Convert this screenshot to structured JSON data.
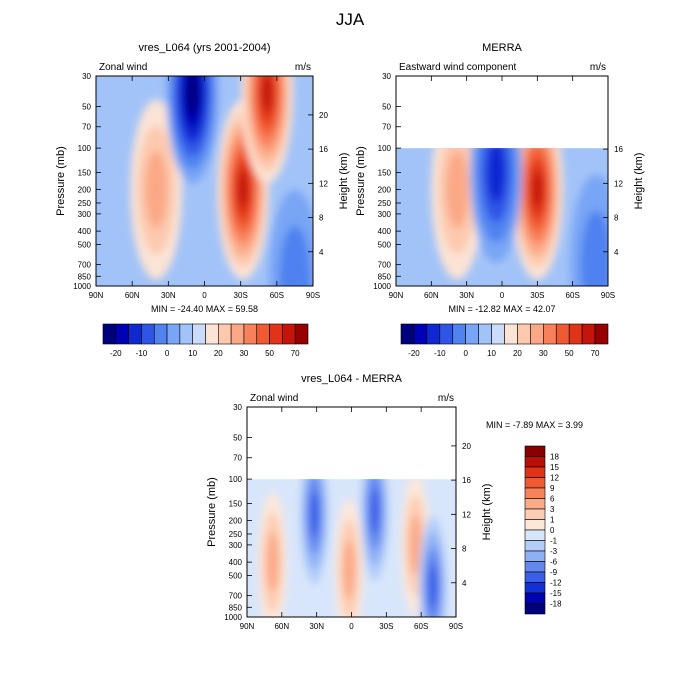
{
  "figure_title": "JJA",
  "colors": {
    "main_scale": [
      "#00007d",
      "#0000b4",
      "#0f28d2",
      "#2e55e6",
      "#5082f0",
      "#78a5f5",
      "#a2c3f8",
      "#cbdcfa",
      "#fbe3d5",
      "#fcc9ae",
      "#fba886",
      "#f8805a",
      "#f05a32",
      "#e03418",
      "#c5140c",
      "#960000"
    ],
    "diff_scale": [
      "#00007d",
      "#0000b4",
      "#1430d2",
      "#3a5ee8",
      "#6488f0",
      "#8eb0f5",
      "#b4cdf8",
      "#d8e6fb",
      "#fde7d9",
      "#fccdb3",
      "#fba987",
      "#f7835c",
      "#f05a33",
      "#de3318",
      "#b81008",
      "#880000"
    ]
  },
  "chart_data": [
    {
      "type": "heatmap",
      "title": "vres_L064 (yrs 2001-2004)",
      "left_label": "Zonal wind",
      "units": "m/s",
      "xlabel": "",
      "ylabel": "Pressure (mb)",
      "right_ylabel": "Height (km)",
      "x_ticks": [
        "90N",
        "60N",
        "30N",
        "0",
        "30S",
        "60S",
        "90S"
      ],
      "y_ticks": [
        30,
        50,
        70,
        100,
        150,
        200,
        250,
        300,
        400,
        500,
        700,
        850,
        1000
      ],
      "height_ticks": [
        4,
        8,
        12,
        16,
        20
      ],
      "y_log": true,
      "ylim": [
        1000,
        30
      ],
      "stats": "MIN = -24.40   MAX = 59.58",
      "min": -24.4,
      "max": 59.58,
      "data_top_mb": 30,
      "colorbar": {
        "labels": [
          "-20",
          "-10",
          "0",
          "10",
          "20",
          "30",
          "50",
          "70"
        ],
        "orientation": "horizontal"
      },
      "features": [
        {
          "type": "jet",
          "lat": 40,
          "p_mb": 200,
          "value": 14
        },
        {
          "type": "jet",
          "lat": -32,
          "p_mb": 200,
          "value": 45
        },
        {
          "type": "jet",
          "lat": -52,
          "p_mb": 40,
          "value": 58
        },
        {
          "type": "easterly",
          "lat": 10,
          "p_mb": 40,
          "value": -24
        },
        {
          "type": "easterly",
          "lat": -75,
          "p_mb": 900,
          "value": -8
        }
      ]
    },
    {
      "type": "heatmap",
      "title": "MERRA",
      "left_label": "Eastward wind component",
      "units": "m/s",
      "xlabel": "",
      "ylabel": "Pressure (mb)",
      "right_ylabel": "Height (km)",
      "x_ticks": [
        "90N",
        "60N",
        "30N",
        "0",
        "30S",
        "60S",
        "90S"
      ],
      "y_ticks": [
        30,
        50,
        70,
        100,
        150,
        200,
        250,
        300,
        400,
        500,
        700,
        850,
        1000
      ],
      "height_ticks": [
        4,
        8,
        12,
        16
      ],
      "y_log": true,
      "ylim": [
        1000,
        30
      ],
      "stats": "MIN = -12.82   MAX =  42.07",
      "min": -12.82,
      "max": 42.07,
      "data_top_mb": 100,
      "colorbar": {
        "labels": [
          "-20",
          "-10",
          "0",
          "10",
          "20",
          "30",
          "50",
          "70"
        ],
        "orientation": "horizontal"
      },
      "features": [
        {
          "type": "jet",
          "lat": 38,
          "p_mb": 200,
          "value": 15
        },
        {
          "type": "jet",
          "lat": -30,
          "p_mb": 200,
          "value": 42
        },
        {
          "type": "easterly",
          "lat": 5,
          "p_mb": 150,
          "value": -13
        },
        {
          "type": "easterly",
          "lat": -80,
          "p_mb": 700,
          "value": -5
        }
      ]
    },
    {
      "type": "heatmap",
      "title": "vres_L064 - MERRA",
      "left_label": "Zonal wind",
      "units": "m/s",
      "xlabel": "",
      "ylabel": "Pressure (mb)",
      "right_ylabel": "Height (km)",
      "x_ticks": [
        "90N",
        "60N",
        "30N",
        "0",
        "30S",
        "60S",
        "90S"
      ],
      "y_ticks": [
        30,
        50,
        70,
        100,
        150,
        200,
        250,
        300,
        400,
        500,
        700,
        850,
        1000
      ],
      "height_ticks": [
        4,
        8,
        12,
        16,
        20
      ],
      "y_log": true,
      "ylim": [
        1000,
        30
      ],
      "stats": "MIN = -7.89   MAX =   3.99",
      "min": -7.89,
      "max": 3.99,
      "data_top_mb": 100,
      "colorbar": {
        "labels": [
          "18",
          "15",
          "12",
          "9",
          "6",
          "3",
          "1",
          "0",
          "-1",
          "-3",
          "-6",
          "-9",
          "-12",
          "-15",
          "-18"
        ],
        "orientation": "vertical"
      },
      "features": [
        {
          "type": "positive",
          "lat": 68,
          "p_mb": 400,
          "value": 3
        },
        {
          "type": "positive",
          "lat": 2,
          "p_mb": 450,
          "value": 3.5
        },
        {
          "type": "positive",
          "lat": -55,
          "p_mb": 300,
          "value": 3
        },
        {
          "type": "negative",
          "lat": 32,
          "p_mb": 180,
          "value": -7.9
        },
        {
          "type": "negative",
          "lat": -20,
          "p_mb": 170,
          "value": -5
        },
        {
          "type": "negative",
          "lat": -70,
          "p_mb": 600,
          "value": -4
        }
      ]
    }
  ]
}
